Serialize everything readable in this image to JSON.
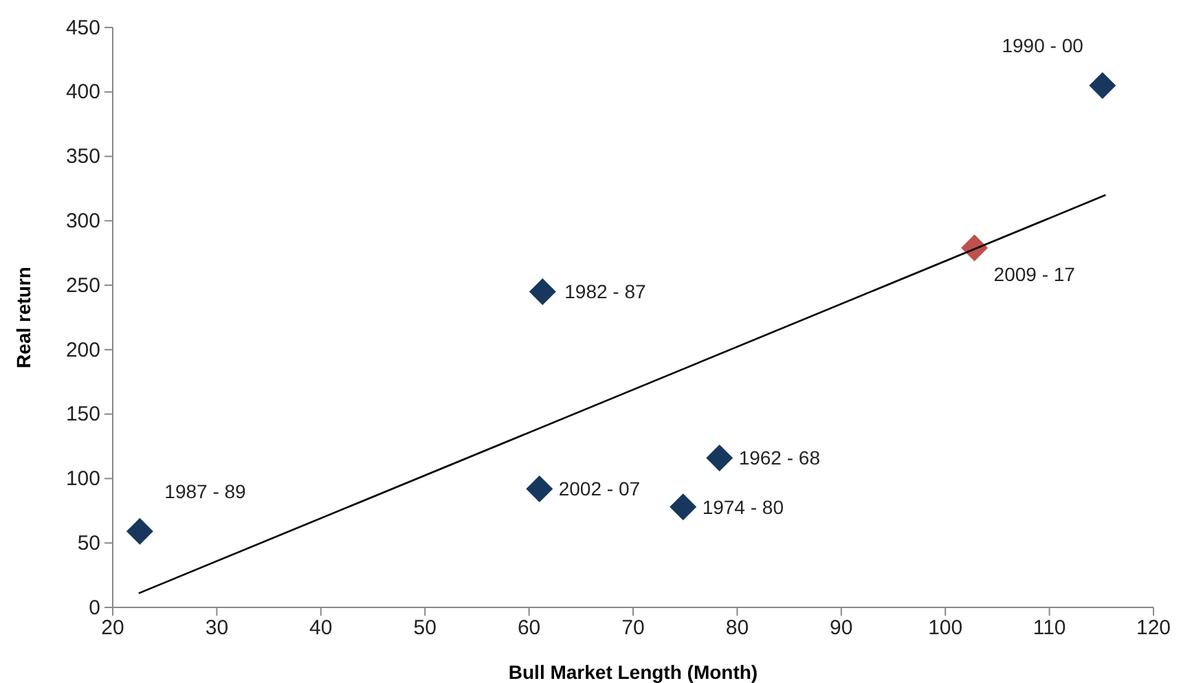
{
  "chart_data": {
    "type": "scatter",
    "xlabel": "Bull Market Length (Month)",
    "ylabel": "Real return",
    "xlim": [
      20,
      120
    ],
    "xticks": [
      20,
      30,
      40,
      50,
      60,
      70,
      80,
      90,
      100,
      110,
      120
    ],
    "ylim": [
      0,
      450
    ],
    "yticks": [
      0,
      50,
      100,
      150,
      200,
      250,
      300,
      350,
      400,
      450
    ],
    "grid": false,
    "series": [
      {
        "marker": "diamond",
        "x": [
          22.6,
          61.3,
          61,
          74.8,
          78.3,
          102.8,
          115.1
        ],
        "values": [
          59,
          245,
          92,
          78,
          116,
          279,
          405
        ],
        "colors": [
          "#17375e",
          "#17375e",
          "#17375e",
          "#17375e",
          "#17375e",
          "#c0504d",
          "#17375e"
        ]
      },
      {
        "type": "line",
        "x": [
          22.5,
          115.4
        ],
        "values": [
          11,
          320
        ],
        "color": "#000000",
        "line_style": "solid"
      }
    ],
    "annotations": [
      {
        "text": "1987 - 89",
        "x": 22.6,
        "y": 59
      },
      {
        "text": "1982 - 87",
        "x": 61.3,
        "y": 245
      },
      {
        "text": "2002 - 07",
        "x": 61,
        "y": 92
      },
      {
        "text": "1974 - 80",
        "x": 74.8,
        "y": 78
      },
      {
        "text": "1962 - 68",
        "x": 78.3,
        "y": 116
      },
      {
        "text": "2009 - 17",
        "x": 102.8,
        "y": 279
      },
      {
        "text": "1990 - 00",
        "x": 115.1,
        "y": 405
      }
    ]
  }
}
